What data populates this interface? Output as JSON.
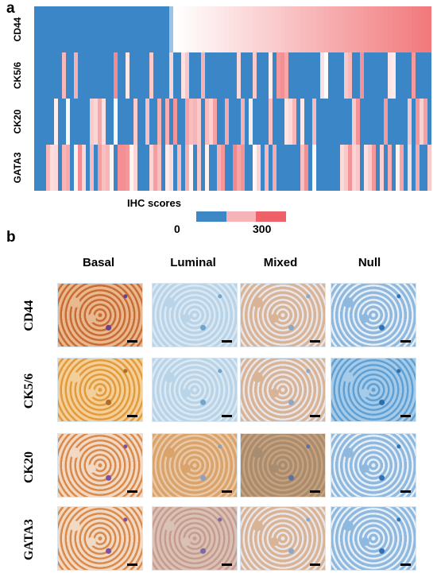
{
  "panel_a": {
    "letter": "a",
    "rows": [
      "CD44",
      "CK5/6",
      "CK20",
      "GATA3"
    ],
    "legend": {
      "title": "IHC scores",
      "min_label": "0",
      "max_label": "300",
      "colors": [
        "#3d87c4",
        "#f7b4b8",
        "#ef6168"
      ]
    }
  },
  "panel_b": {
    "letter": "b",
    "columns": [
      "Basal",
      "Luminal",
      "Mixed",
      "Null"
    ],
    "rows": [
      "CD44",
      "CK5/6",
      "CK20",
      "GATA3"
    ]
  },
  "colors": {
    "blue": "#3a86c6",
    "red": "#ef5f63",
    "white": "#ffffff"
  }
}
